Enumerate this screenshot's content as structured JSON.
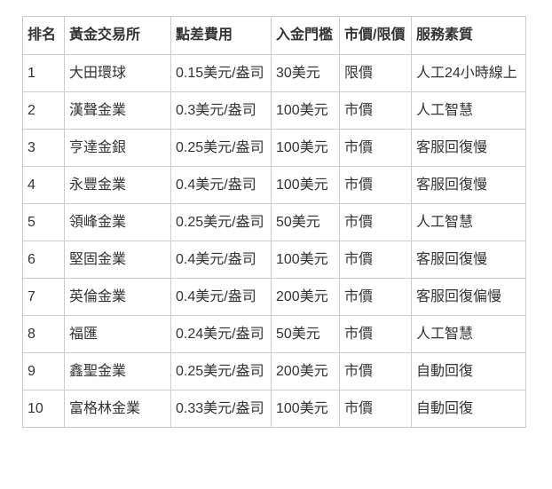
{
  "page": {
    "background_color": "#ffffff",
    "border_color": "#cccccc",
    "text_color": "#333333"
  },
  "chart_data": {
    "type": "table",
    "title": "",
    "columns": [
      "排名",
      "黃金交易所",
      "點差費用",
      "入金門檻",
      "市價/限價",
      "服務素質"
    ],
    "rows": [
      [
        "1",
        "大田環球",
        "0.15美元/盎司",
        "30美元",
        "限價",
        "人工24小時線上"
      ],
      [
        "2",
        "漢聲金業",
        "0.3美元/盎司",
        "100美元",
        "市價",
        "人工智慧"
      ],
      [
        "3",
        "亨達金銀",
        "0.25美元/盎司",
        "100美元",
        "市價",
        "客服回復慢"
      ],
      [
        "4",
        "永豐金業",
        "0.4美元/盎司",
        "100美元",
        "市價",
        "客服回復慢"
      ],
      [
        "5",
        "領峰金業",
        "0.25美元/盎司",
        "50美元",
        "市價",
        "人工智慧"
      ],
      [
        "6",
        "堅固金業",
        "0.4美元/盎司",
        "100美元",
        "市價",
        "客服回復慢"
      ],
      [
        "7",
        "英倫金業",
        "0.4美元/盎司",
        "200美元",
        "市價",
        "客服回復偏慢"
      ],
      [
        "8",
        "福匯",
        "0.24美元/盎司",
        "50美元",
        "市價",
        "人工智慧"
      ],
      [
        "9",
        "鑫聖金業",
        "0.25美元/盎司",
        "200美元",
        "市價",
        "自動回復"
      ],
      [
        "10",
        "富格林金業",
        "0.33美元/盎司",
        "100美元",
        "市價",
        "自動回復"
      ]
    ]
  }
}
